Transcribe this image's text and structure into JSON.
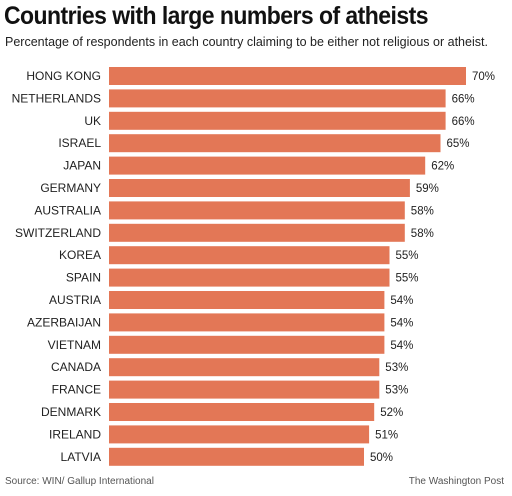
{
  "header": {
    "title": "Countries with large numbers of atheists",
    "subtitle": "Percentage of respondents in each country claiming to be either not religious or atheist."
  },
  "footer": {
    "source": "Source: WIN/ Gallup International",
    "credit": "The Washington Post"
  },
  "colors": {
    "bar": "#e37756"
  },
  "chart_data": {
    "type": "bar",
    "orientation": "horizontal",
    "title": "Countries with large numbers of atheists",
    "subtitle": "Percentage of respondents in each country claiming to be either not religious or atheist.",
    "categories": [
      "HONG KONG",
      "NETHERLANDS",
      "UK",
      "ISRAEL",
      "JAPAN",
      "GERMANY",
      "AUSTRALIA",
      "SWITZERLAND",
      "KOREA",
      "SPAIN",
      "AUSTRIA",
      "AZERBAIJAN",
      "VIETNAM",
      "CANADA",
      "FRANCE",
      "DENMARK",
      "IRELAND",
      "LATVIA"
    ],
    "values": [
      70,
      66,
      66,
      65,
      62,
      59,
      58,
      58,
      55,
      55,
      54,
      54,
      54,
      53,
      53,
      52,
      51,
      50
    ],
    "value_labels": [
      "70%",
      "66%",
      "66%",
      "65%",
      "62%",
      "59%",
      "58%",
      "58%",
      "55%",
      "55%",
      "54%",
      "54%",
      "54%",
      "53%",
      "53%",
      "52%",
      "51%",
      "50%"
    ],
    "xlim": [
      0,
      70
    ],
    "grid": false,
    "legend": "none"
  }
}
